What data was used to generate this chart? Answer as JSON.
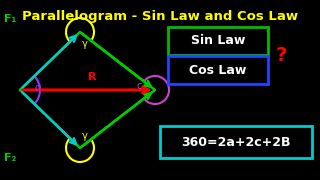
{
  "bg_color": "#000000",
  "title": "Parallelogram - Sin Law and Cos Law",
  "title_color": "#FFFF00",
  "title_fontsize": 9.5,
  "title_weight": "bold",
  "sin_text": "Sin Law",
  "cos_text": "Cos Law",
  "eq_text": "360=2a+2c+2B",
  "sin_border": "#00BB00",
  "cos_border": "#2244FF",
  "eq_border": "#00CCCC",
  "text_color": "#FFFFFF",
  "q_color": "#FF0000",
  "F1_color": "#00CC00",
  "F2_color": "#00CC00",
  "R_color": "#FF0000",
  "arrow_cyan": "#00CCCC",
  "alpha_color": "#9933FF",
  "gamma_color": "#FFFF00",
  "c_color": "#CC44CC"
}
